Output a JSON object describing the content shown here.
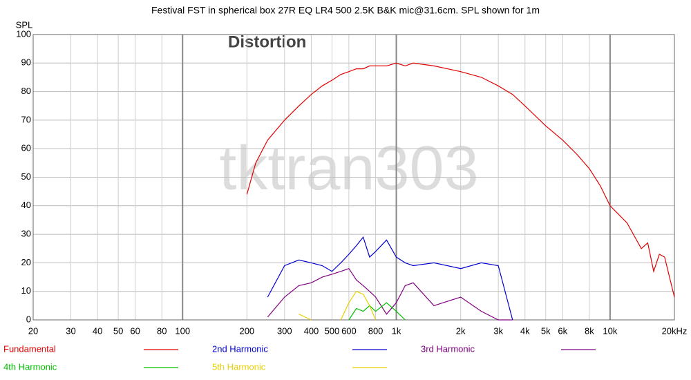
{
  "chart_data": {
    "type": "line",
    "title": "Festival FST in spherical box 27R EQ LR4 500 2.5K B&K mic@31.6cm. SPL shown for 1m",
    "y_label": "SPL",
    "annotations": [
      "Distortion",
      "tktran303"
    ],
    "x_scale": "log",
    "grid": true,
    "x": [
      200,
      220,
      250,
      300,
      350,
      400,
      450,
      500,
      550,
      600,
      650,
      700,
      750,
      800,
      900,
      1000,
      1100,
      1200,
      1500,
      2000,
      2500,
      3000,
      3500,
      4000,
      5000,
      6000,
      7000,
      8000,
      9000,
      10000,
      12000,
      14000,
      15000,
      16000,
      17000,
      18000,
      20000
    ],
    "series": [
      {
        "name": "Fundamental",
        "color": "#e00000",
        "values": [
          44,
          55,
          63,
          70,
          75,
          79,
          82,
          84,
          86,
          87,
          88,
          88,
          89,
          89,
          89,
          90,
          89,
          90,
          89,
          87,
          85,
          82,
          79,
          75,
          68,
          63,
          58,
          53,
          47,
          40,
          34,
          25,
          27,
          17,
          23,
          22,
          8
        ]
      },
      {
        "name": "2nd Harmonic",
        "color": "#0000d0",
        "values": [
          null,
          null,
          8,
          19,
          21,
          20,
          19,
          17,
          20,
          23,
          26,
          29,
          22,
          24,
          28,
          22,
          20,
          19,
          20,
          18,
          20,
          19,
          0,
          null,
          null,
          null,
          null,
          null,
          null,
          null,
          null,
          null,
          null,
          null,
          null,
          null,
          null
        ]
      },
      {
        "name": "3rd Harmonic",
        "color": "#800080",
        "values": [
          null,
          null,
          1,
          8,
          12,
          13,
          15,
          16,
          17,
          18,
          14,
          12,
          10,
          8,
          2,
          6,
          12,
          13,
          5,
          8,
          3,
          0,
          0,
          null,
          null,
          null,
          null,
          null,
          null,
          null,
          null,
          null,
          null,
          null,
          null,
          null,
          null
        ]
      },
      {
        "name": "4th Harmonic",
        "color": "#00c000",
        "values": [
          null,
          null,
          null,
          null,
          null,
          null,
          null,
          null,
          null,
          0,
          4,
          3,
          5,
          3,
          6,
          3,
          0,
          null,
          null,
          null,
          null,
          null,
          null,
          null,
          null,
          null,
          null,
          null,
          null,
          null,
          null,
          null,
          null,
          null,
          null,
          null,
          null
        ]
      },
      {
        "name": "5th Harmonic",
        "color": "#e8d000",
        "values": [
          null,
          null,
          null,
          null,
          2,
          0,
          null,
          null,
          0,
          6,
          10,
          9,
          5,
          0,
          null,
          null,
          null,
          null,
          null,
          null,
          null,
          null,
          null,
          null,
          null,
          null,
          null,
          null,
          null,
          null,
          null,
          null,
          null,
          null,
          null,
          null,
          null
        ]
      }
    ],
    "xlim": [
      20,
      20000
    ],
    "xticks": [
      20,
      30,
      40,
      50,
      60,
      80,
      100,
      200,
      300,
      400,
      500,
      600,
      800,
      {
        "value": 1000,
        "label": "1k"
      },
      {
        "value": 2000,
        "label": "2k"
      },
      {
        "value": 3000,
        "label": "3k"
      },
      {
        "value": 4000,
        "label": "4k"
      },
      {
        "value": 5000,
        "label": "5k"
      },
      {
        "value": 6000,
        "label": "6k"
      },
      {
        "value": 8000,
        "label": "8k"
      },
      {
        "value": 10000,
        "label": "10k"
      },
      {
        "value": 20000,
        "label": "20kHz"
      }
    ],
    "ylim": [
      0,
      100
    ],
    "yticks": [
      0,
      10,
      20,
      30,
      40,
      50,
      60,
      70,
      80,
      90,
      100
    ]
  }
}
